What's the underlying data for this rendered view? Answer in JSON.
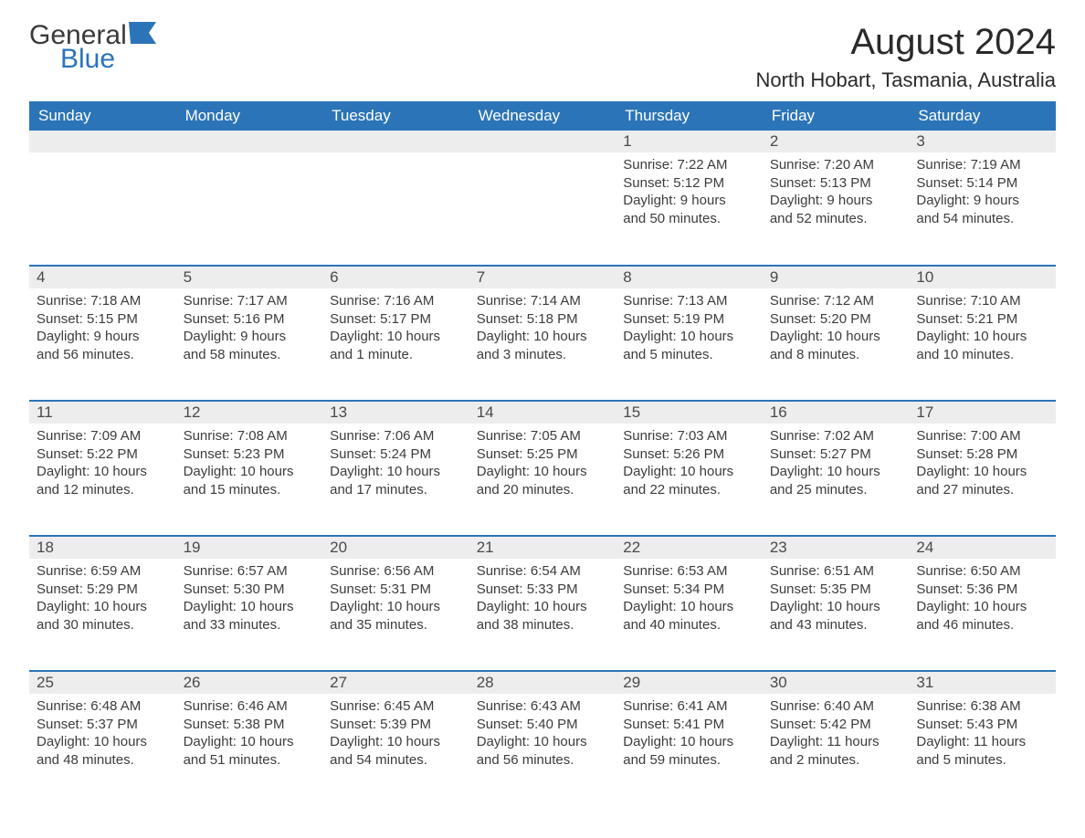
{
  "logo": {
    "word1": "General",
    "word2": "Blue"
  },
  "title": "August 2024",
  "location": "North Hobart, Tasmania, Australia",
  "colors": {
    "brand_blue": "#2b74b8",
    "header_text": "#ffffff",
    "daynum_bg": "#ededed",
    "body_text": "#3c3c3c",
    "page_bg": "#ffffff"
  },
  "calendar": {
    "day_header_bg": "#ededed",
    "week_border_color": "#2b74b8",
    "columns": [
      "Sunday",
      "Monday",
      "Tuesday",
      "Wednesday",
      "Thursday",
      "Friday",
      "Saturday"
    ],
    "weeks": [
      [
        null,
        null,
        null,
        null,
        {
          "n": "1",
          "sunrise": "Sunrise: 7:22 AM",
          "sunset": "Sunset: 5:12 PM",
          "daylight1": "Daylight: 9 hours",
          "daylight2": "and 50 minutes."
        },
        {
          "n": "2",
          "sunrise": "Sunrise: 7:20 AM",
          "sunset": "Sunset: 5:13 PM",
          "daylight1": "Daylight: 9 hours",
          "daylight2": "and 52 minutes."
        },
        {
          "n": "3",
          "sunrise": "Sunrise: 7:19 AM",
          "sunset": "Sunset: 5:14 PM",
          "daylight1": "Daylight: 9 hours",
          "daylight2": "and 54 minutes."
        }
      ],
      [
        {
          "n": "4",
          "sunrise": "Sunrise: 7:18 AM",
          "sunset": "Sunset: 5:15 PM",
          "daylight1": "Daylight: 9 hours",
          "daylight2": "and 56 minutes."
        },
        {
          "n": "5",
          "sunrise": "Sunrise: 7:17 AM",
          "sunset": "Sunset: 5:16 PM",
          "daylight1": "Daylight: 9 hours",
          "daylight2": "and 58 minutes."
        },
        {
          "n": "6",
          "sunrise": "Sunrise: 7:16 AM",
          "sunset": "Sunset: 5:17 PM",
          "daylight1": "Daylight: 10 hours",
          "daylight2": "and 1 minute."
        },
        {
          "n": "7",
          "sunrise": "Sunrise: 7:14 AM",
          "sunset": "Sunset: 5:18 PM",
          "daylight1": "Daylight: 10 hours",
          "daylight2": "and 3 minutes."
        },
        {
          "n": "8",
          "sunrise": "Sunrise: 7:13 AM",
          "sunset": "Sunset: 5:19 PM",
          "daylight1": "Daylight: 10 hours",
          "daylight2": "and 5 minutes."
        },
        {
          "n": "9",
          "sunrise": "Sunrise: 7:12 AM",
          "sunset": "Sunset: 5:20 PM",
          "daylight1": "Daylight: 10 hours",
          "daylight2": "and 8 minutes."
        },
        {
          "n": "10",
          "sunrise": "Sunrise: 7:10 AM",
          "sunset": "Sunset: 5:21 PM",
          "daylight1": "Daylight: 10 hours",
          "daylight2": "and 10 minutes."
        }
      ],
      [
        {
          "n": "11",
          "sunrise": "Sunrise: 7:09 AM",
          "sunset": "Sunset: 5:22 PM",
          "daylight1": "Daylight: 10 hours",
          "daylight2": "and 12 minutes."
        },
        {
          "n": "12",
          "sunrise": "Sunrise: 7:08 AM",
          "sunset": "Sunset: 5:23 PM",
          "daylight1": "Daylight: 10 hours",
          "daylight2": "and 15 minutes."
        },
        {
          "n": "13",
          "sunrise": "Sunrise: 7:06 AM",
          "sunset": "Sunset: 5:24 PM",
          "daylight1": "Daylight: 10 hours",
          "daylight2": "and 17 minutes."
        },
        {
          "n": "14",
          "sunrise": "Sunrise: 7:05 AM",
          "sunset": "Sunset: 5:25 PM",
          "daylight1": "Daylight: 10 hours",
          "daylight2": "and 20 minutes."
        },
        {
          "n": "15",
          "sunrise": "Sunrise: 7:03 AM",
          "sunset": "Sunset: 5:26 PM",
          "daylight1": "Daylight: 10 hours",
          "daylight2": "and 22 minutes."
        },
        {
          "n": "16",
          "sunrise": "Sunrise: 7:02 AM",
          "sunset": "Sunset: 5:27 PM",
          "daylight1": "Daylight: 10 hours",
          "daylight2": "and 25 minutes."
        },
        {
          "n": "17",
          "sunrise": "Sunrise: 7:00 AM",
          "sunset": "Sunset: 5:28 PM",
          "daylight1": "Daylight: 10 hours",
          "daylight2": "and 27 minutes."
        }
      ],
      [
        {
          "n": "18",
          "sunrise": "Sunrise: 6:59 AM",
          "sunset": "Sunset: 5:29 PM",
          "daylight1": "Daylight: 10 hours",
          "daylight2": "and 30 minutes."
        },
        {
          "n": "19",
          "sunrise": "Sunrise: 6:57 AM",
          "sunset": "Sunset: 5:30 PM",
          "daylight1": "Daylight: 10 hours",
          "daylight2": "and 33 minutes."
        },
        {
          "n": "20",
          "sunrise": "Sunrise: 6:56 AM",
          "sunset": "Sunset: 5:31 PM",
          "daylight1": "Daylight: 10 hours",
          "daylight2": "and 35 minutes."
        },
        {
          "n": "21",
          "sunrise": "Sunrise: 6:54 AM",
          "sunset": "Sunset: 5:33 PM",
          "daylight1": "Daylight: 10 hours",
          "daylight2": "and 38 minutes."
        },
        {
          "n": "22",
          "sunrise": "Sunrise: 6:53 AM",
          "sunset": "Sunset: 5:34 PM",
          "daylight1": "Daylight: 10 hours",
          "daylight2": "and 40 minutes."
        },
        {
          "n": "23",
          "sunrise": "Sunrise: 6:51 AM",
          "sunset": "Sunset: 5:35 PM",
          "daylight1": "Daylight: 10 hours",
          "daylight2": "and 43 minutes."
        },
        {
          "n": "24",
          "sunrise": "Sunrise: 6:50 AM",
          "sunset": "Sunset: 5:36 PM",
          "daylight1": "Daylight: 10 hours",
          "daylight2": "and 46 minutes."
        }
      ],
      [
        {
          "n": "25",
          "sunrise": "Sunrise: 6:48 AM",
          "sunset": "Sunset: 5:37 PM",
          "daylight1": "Daylight: 10 hours",
          "daylight2": "and 48 minutes."
        },
        {
          "n": "26",
          "sunrise": "Sunrise: 6:46 AM",
          "sunset": "Sunset: 5:38 PM",
          "daylight1": "Daylight: 10 hours",
          "daylight2": "and 51 minutes."
        },
        {
          "n": "27",
          "sunrise": "Sunrise: 6:45 AM",
          "sunset": "Sunset: 5:39 PM",
          "daylight1": "Daylight: 10 hours",
          "daylight2": "and 54 minutes."
        },
        {
          "n": "28",
          "sunrise": "Sunrise: 6:43 AM",
          "sunset": "Sunset: 5:40 PM",
          "daylight1": "Daylight: 10 hours",
          "daylight2": "and 56 minutes."
        },
        {
          "n": "29",
          "sunrise": "Sunrise: 6:41 AM",
          "sunset": "Sunset: 5:41 PM",
          "daylight1": "Daylight: 10 hours",
          "daylight2": "and 59 minutes."
        },
        {
          "n": "30",
          "sunrise": "Sunrise: 6:40 AM",
          "sunset": "Sunset: 5:42 PM",
          "daylight1": "Daylight: 11 hours",
          "daylight2": "and 2 minutes."
        },
        {
          "n": "31",
          "sunrise": "Sunrise: 6:38 AM",
          "sunset": "Sunset: 5:43 PM",
          "daylight1": "Daylight: 11 hours",
          "daylight2": "and 5 minutes."
        }
      ]
    ]
  }
}
